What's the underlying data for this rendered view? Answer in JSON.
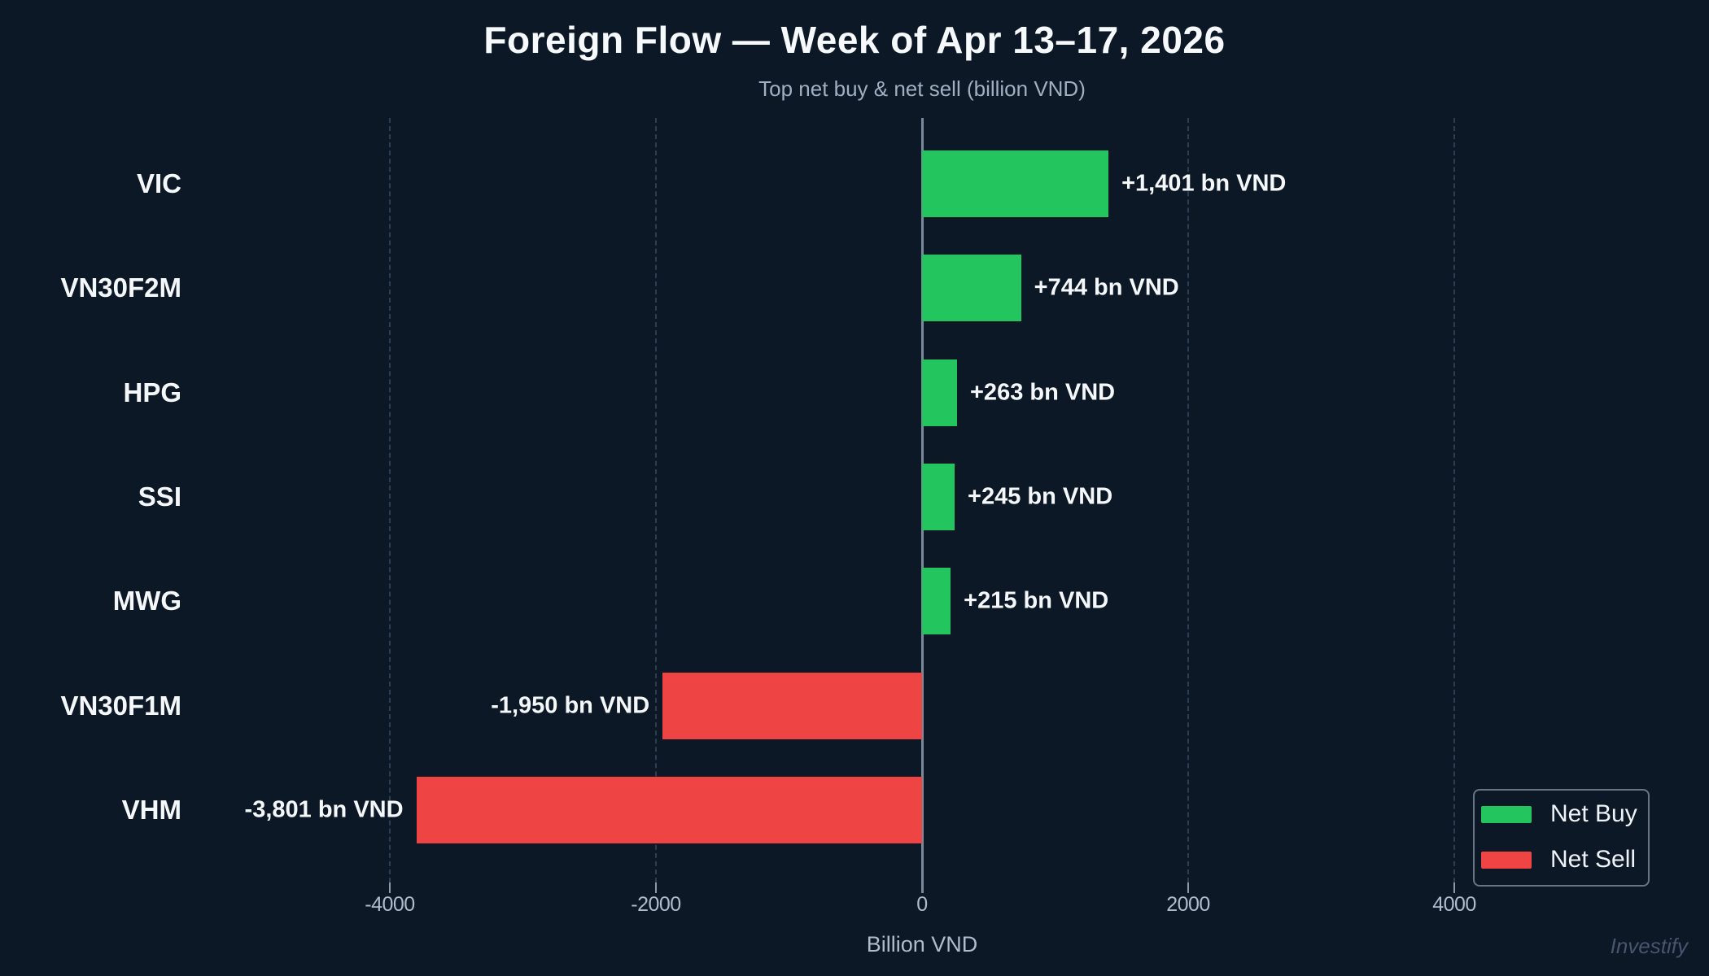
{
  "title": "Foreign Flow — Week of Apr 13–17, 2026",
  "subtitle": "Top net buy & net sell (billion VND)",
  "watermark": "Investify",
  "colors": {
    "background": "#0d1827",
    "net_buy": "#22c55e",
    "net_sell": "#ef4444",
    "text_primary": "#f5f8fa",
    "text_muted": "#9fb0c1",
    "zero_line": "#7b8a9a",
    "gridline": "#2c3e52"
  },
  "legend": {
    "position": "bottom-right",
    "items": [
      {
        "label": "Net Buy",
        "color": "#22c55e"
      },
      {
        "label": "Net Sell",
        "color": "#ef4444"
      }
    ]
  },
  "chart_data": {
    "type": "bar",
    "orientation": "horizontal",
    "title": "Foreign Flow — Week of Apr 13–17, 2026",
    "subtitle": "Top net buy & net sell (billion VND)",
    "xlabel": "Billion VND",
    "ylabel": "",
    "categories": [
      "VIC",
      "VN30F2M",
      "HPG",
      "SSI",
      "MWG",
      "VN30F1M",
      "VHM"
    ],
    "values": [
      1401,
      744,
      263,
      245,
      215,
      -1950,
      -3801
    ],
    "value_labels": [
      "+1,401 bn VND",
      "+744 bn VND",
      "+263 bn VND",
      "+245 bn VND",
      "+215 bn VND",
      "-1,950 bn VND",
      "-3,801 bn VND"
    ],
    "series_colors": [
      "#22c55e",
      "#22c55e",
      "#22c55e",
      "#22c55e",
      "#22c55e",
      "#ef4444",
      "#ef4444"
    ],
    "xticks": [
      -4000,
      -2000,
      0,
      2000,
      4000
    ],
    "xtick_labels": [
      "-4000",
      "-2000",
      "0",
      "2000",
      "4000"
    ],
    "xlim": [
      -4610,
      4610
    ],
    "grid": "vertical-dashed",
    "legend_position": "lower right"
  }
}
